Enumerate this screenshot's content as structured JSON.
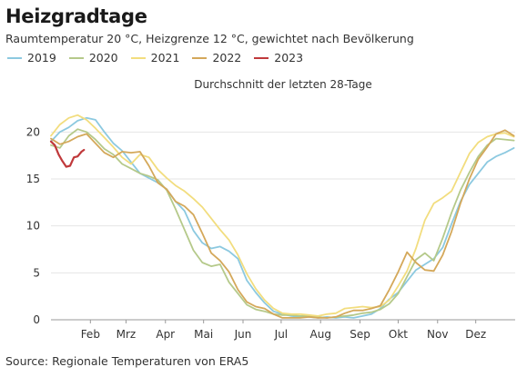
{
  "header": {
    "title": "Heizgradtage",
    "subtitle": "Raumtemperatur 20 °C, Heizgrenze 12 °C, gewichtet nach Bevölkerung"
  },
  "source": "Source: Regionale Temperaturen von ERA5",
  "chart_data": {
    "type": "line",
    "title": "Durchschnitt der letzten 28-Tage",
    "xlabel": "",
    "ylabel": "",
    "ylim": [
      0,
      24
    ],
    "yticks": [
      0,
      5,
      10,
      15,
      20
    ],
    "xlim": [
      0,
      365
    ],
    "xticks": [
      {
        "label": "Feb",
        "day": 31
      },
      {
        "label": "Mrz",
        "day": 59
      },
      {
        "label": "Apr",
        "day": 90
      },
      {
        "label": "Mai",
        "day": 120
      },
      {
        "label": "Jun",
        "day": 151
      },
      {
        "label": "Jul",
        "day": 181
      },
      {
        "label": "Aug",
        "day": 212
      },
      {
        "label": "Sep",
        "day": 243
      },
      {
        "label": "Okt",
        "day": 273
      },
      {
        "label": "Nov",
        "day": 304
      },
      {
        "label": "Dez",
        "day": 334
      }
    ],
    "grid": "horizontal",
    "legend_position": "top-left",
    "series": [
      {
        "name": "2019",
        "color": "#8cc9e0",
        "x": [
          0,
          7,
          14,
          21,
          28,
          35,
          42,
          49,
          56,
          63,
          70,
          77,
          84,
          91,
          98,
          105,
          112,
          119,
          126,
          133,
          140,
          147,
          154,
          161,
          168,
          175,
          182,
          189,
          196,
          203,
          210,
          217,
          224,
          231,
          238,
          245,
          252,
          259,
          266,
          273,
          280,
          287,
          294,
          301,
          308,
          315,
          322,
          329,
          336,
          343,
          350,
          357,
          364
        ],
        "y": [
          19.0,
          20.0,
          20.5,
          21.2,
          21.5,
          21.3,
          20.0,
          18.8,
          18.0,
          16.8,
          15.6,
          15.1,
          14.6,
          13.9,
          12.6,
          11.6,
          9.5,
          8.2,
          7.6,
          7.8,
          7.3,
          6.5,
          4.2,
          2.9,
          1.8,
          0.9,
          0.6,
          0.4,
          0.3,
          0.3,
          0.2,
          0.3,
          0.2,
          0.3,
          0.2,
          0.4,
          0.6,
          1.2,
          2.2,
          2.9,
          4.1,
          5.3,
          5.9,
          6.5,
          7.7,
          10.2,
          12.6,
          14.4,
          15.6,
          16.8,
          17.4,
          17.8,
          18.3
        ]
      },
      {
        "name": "2020",
        "color": "#b5c98a",
        "x": [
          0,
          7,
          14,
          21,
          28,
          35,
          42,
          49,
          56,
          63,
          70,
          77,
          84,
          91,
          98,
          105,
          112,
          119,
          126,
          133,
          140,
          147,
          154,
          161,
          168,
          175,
          182,
          189,
          196,
          203,
          210,
          217,
          224,
          231,
          238,
          245,
          252,
          259,
          266,
          273,
          280,
          287,
          294,
          301,
          308,
          315,
          322,
          329,
          336,
          343,
          350,
          357,
          364
        ],
        "y": [
          18.6,
          18.3,
          19.6,
          20.3,
          20.0,
          19.2,
          18.2,
          17.6,
          16.6,
          16.1,
          15.6,
          15.3,
          14.9,
          13.8,
          11.8,
          9.6,
          7.4,
          6.1,
          5.7,
          5.9,
          4.0,
          2.8,
          1.6,
          1.1,
          0.9,
          0.6,
          0.5,
          0.5,
          0.4,
          0.4,
          0.3,
          0.2,
          0.3,
          0.4,
          0.5,
          0.7,
          0.8,
          1.1,
          1.7,
          2.8,
          4.6,
          6.4,
          7.1,
          6.3,
          8.7,
          11.4,
          13.8,
          15.7,
          17.4,
          18.6,
          19.3,
          19.2,
          19.1
        ]
      },
      {
        "name": "2021",
        "color": "#f2dd7e",
        "x": [
          0,
          7,
          14,
          21,
          28,
          35,
          42,
          49,
          56,
          63,
          70,
          77,
          84,
          91,
          98,
          105,
          112,
          119,
          126,
          133,
          140,
          147,
          154,
          161,
          168,
          175,
          182,
          189,
          196,
          203,
          210,
          217,
          224,
          231,
          238,
          245,
          252,
          259,
          266,
          273,
          280,
          287,
          294,
          301,
          308,
          315,
          322,
          329,
          336,
          343,
          350,
          357,
          364
        ],
        "y": [
          19.6,
          20.8,
          21.5,
          21.8,
          21.3,
          20.4,
          19.4,
          18.4,
          17.3,
          16.6,
          17.6,
          17.3,
          16.0,
          15.1,
          14.3,
          13.7,
          12.9,
          12.0,
          10.8,
          9.6,
          8.5,
          6.9,
          4.9,
          3.3,
          2.1,
          1.2,
          0.7,
          0.6,
          0.6,
          0.5,
          0.4,
          0.6,
          0.7,
          1.2,
          1.3,
          1.4,
          1.3,
          1.4,
          2.1,
          3.6,
          5.2,
          7.6,
          10.6,
          12.4,
          13.0,
          13.7,
          15.7,
          17.7,
          18.9,
          19.5,
          19.8,
          19.9,
          19.5
        ]
      },
      {
        "name": "2022",
        "color": "#d4a85a",
        "x": [
          0,
          7,
          14,
          21,
          28,
          35,
          42,
          49,
          56,
          63,
          70,
          77,
          84,
          91,
          98,
          105,
          112,
          119,
          126,
          133,
          140,
          147,
          154,
          161,
          168,
          175,
          182,
          189,
          196,
          203,
          210,
          217,
          224,
          231,
          238,
          245,
          252,
          259,
          266,
          273,
          280,
          287,
          294,
          301,
          308,
          315,
          322,
          329,
          336,
          343,
          350,
          357,
          364
        ],
        "y": [
          19.3,
          18.7,
          19.0,
          19.5,
          19.8,
          18.8,
          17.8,
          17.3,
          17.9,
          17.8,
          17.9,
          16.4,
          14.6,
          13.9,
          12.6,
          12.1,
          11.2,
          9.2,
          7.1,
          6.3,
          5.1,
          3.2,
          1.9,
          1.4,
          1.2,
          0.6,
          0.2,
          0.2,
          0.2,
          0.3,
          0.2,
          0.2,
          0.3,
          0.7,
          1.0,
          1.0,
          1.2,
          1.5,
          3.2,
          5.1,
          7.2,
          6.1,
          5.3,
          5.2,
          6.9,
          9.4,
          12.4,
          15.0,
          17.1,
          18.4,
          19.8,
          20.2,
          19.6
        ]
      },
      {
        "name": "2023",
        "color": "#c0393b",
        "x": [
          0,
          3,
          6,
          9,
          12,
          15,
          18,
          21,
          24,
          26
        ],
        "y": [
          19.0,
          18.6,
          17.6,
          16.9,
          16.3,
          16.4,
          17.3,
          17.4,
          17.9,
          18.1
        ]
      }
    ]
  }
}
